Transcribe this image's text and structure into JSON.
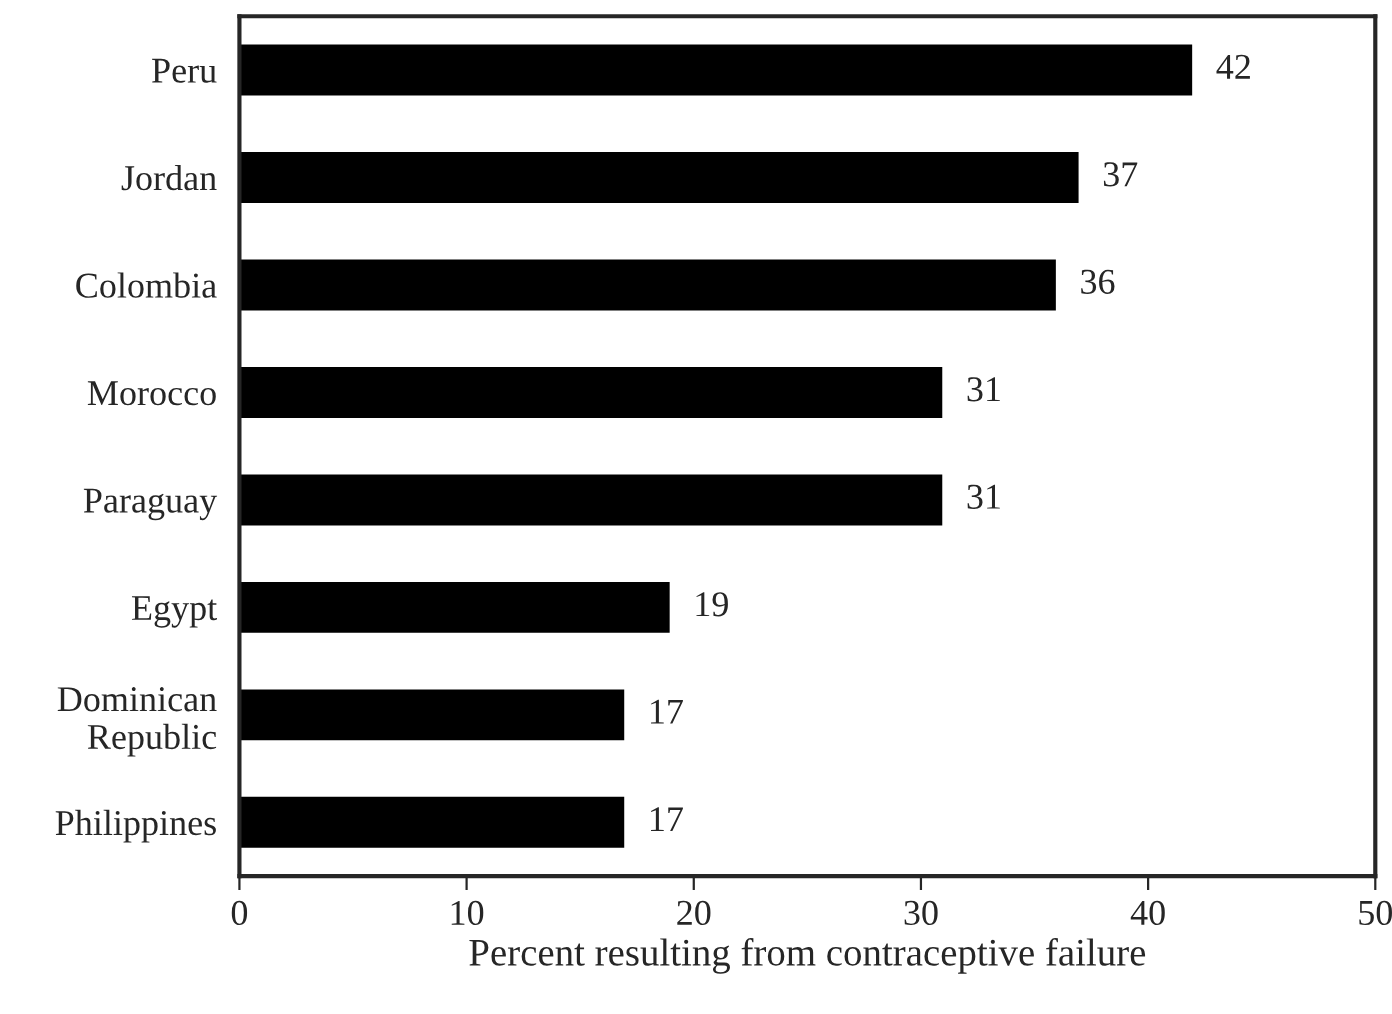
{
  "chart_data": {
    "type": "bar",
    "orientation": "horizontal",
    "xlabel": "Percent resulting from contraceptive failure",
    "categories": [
      "Peru",
      "Jordan",
      "Colombia",
      "Morocco",
      "Paraguay",
      "Egypt",
      "Dominican\nRepublic",
      "Philippines"
    ],
    "values": [
      42,
      37,
      36,
      31,
      31,
      19,
      17,
      17
    ],
    "color": "#000000",
    "xlim": [
      0,
      50
    ],
    "xticks": [
      0,
      10,
      20,
      30,
      40,
      50
    ],
    "data_labels": true,
    "grid": false,
    "legend": false
  }
}
